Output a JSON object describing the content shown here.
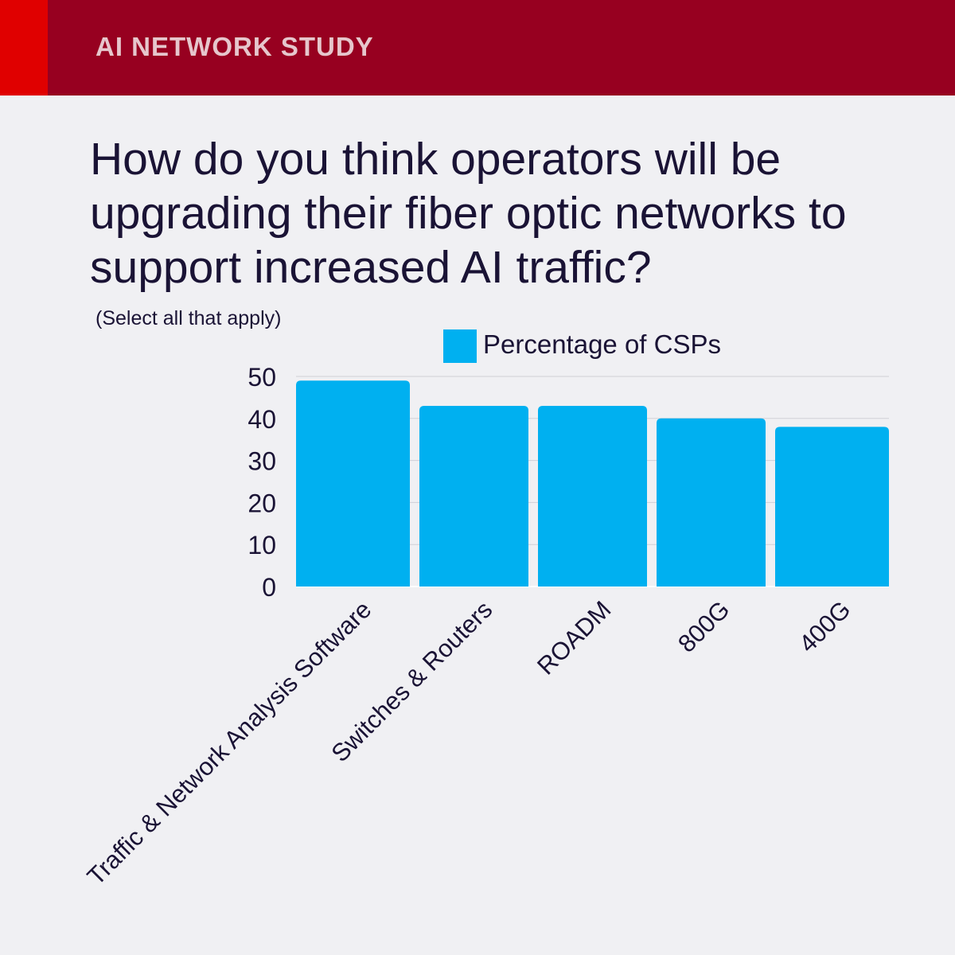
{
  "header": {
    "title": "AI NETWORK STUDY"
  },
  "question": "How do you think operators will be upgrading their fiber optic networks to support increased AI traffic?",
  "subnote": "(Select all that apply)",
  "colors": {
    "header_bg": "#970020",
    "header_accent": "#e00000",
    "bar": "#00b0f0",
    "text": "#1a1335",
    "background": "#f0f0f3"
  },
  "chart_data": {
    "type": "bar",
    "categories": [
      "Traffic & Network Analysis Software",
      "Switches & Routers",
      "ROADM",
      "800G",
      "400G"
    ],
    "series": [
      {
        "name": "Percentage of CSPs",
        "values": [
          49,
          43,
          43,
          40,
          38
        ]
      }
    ],
    "ylim": [
      0,
      50
    ],
    "yticks": [
      0,
      10,
      20,
      30,
      40,
      50
    ],
    "grid": true,
    "legend": "top-center"
  }
}
